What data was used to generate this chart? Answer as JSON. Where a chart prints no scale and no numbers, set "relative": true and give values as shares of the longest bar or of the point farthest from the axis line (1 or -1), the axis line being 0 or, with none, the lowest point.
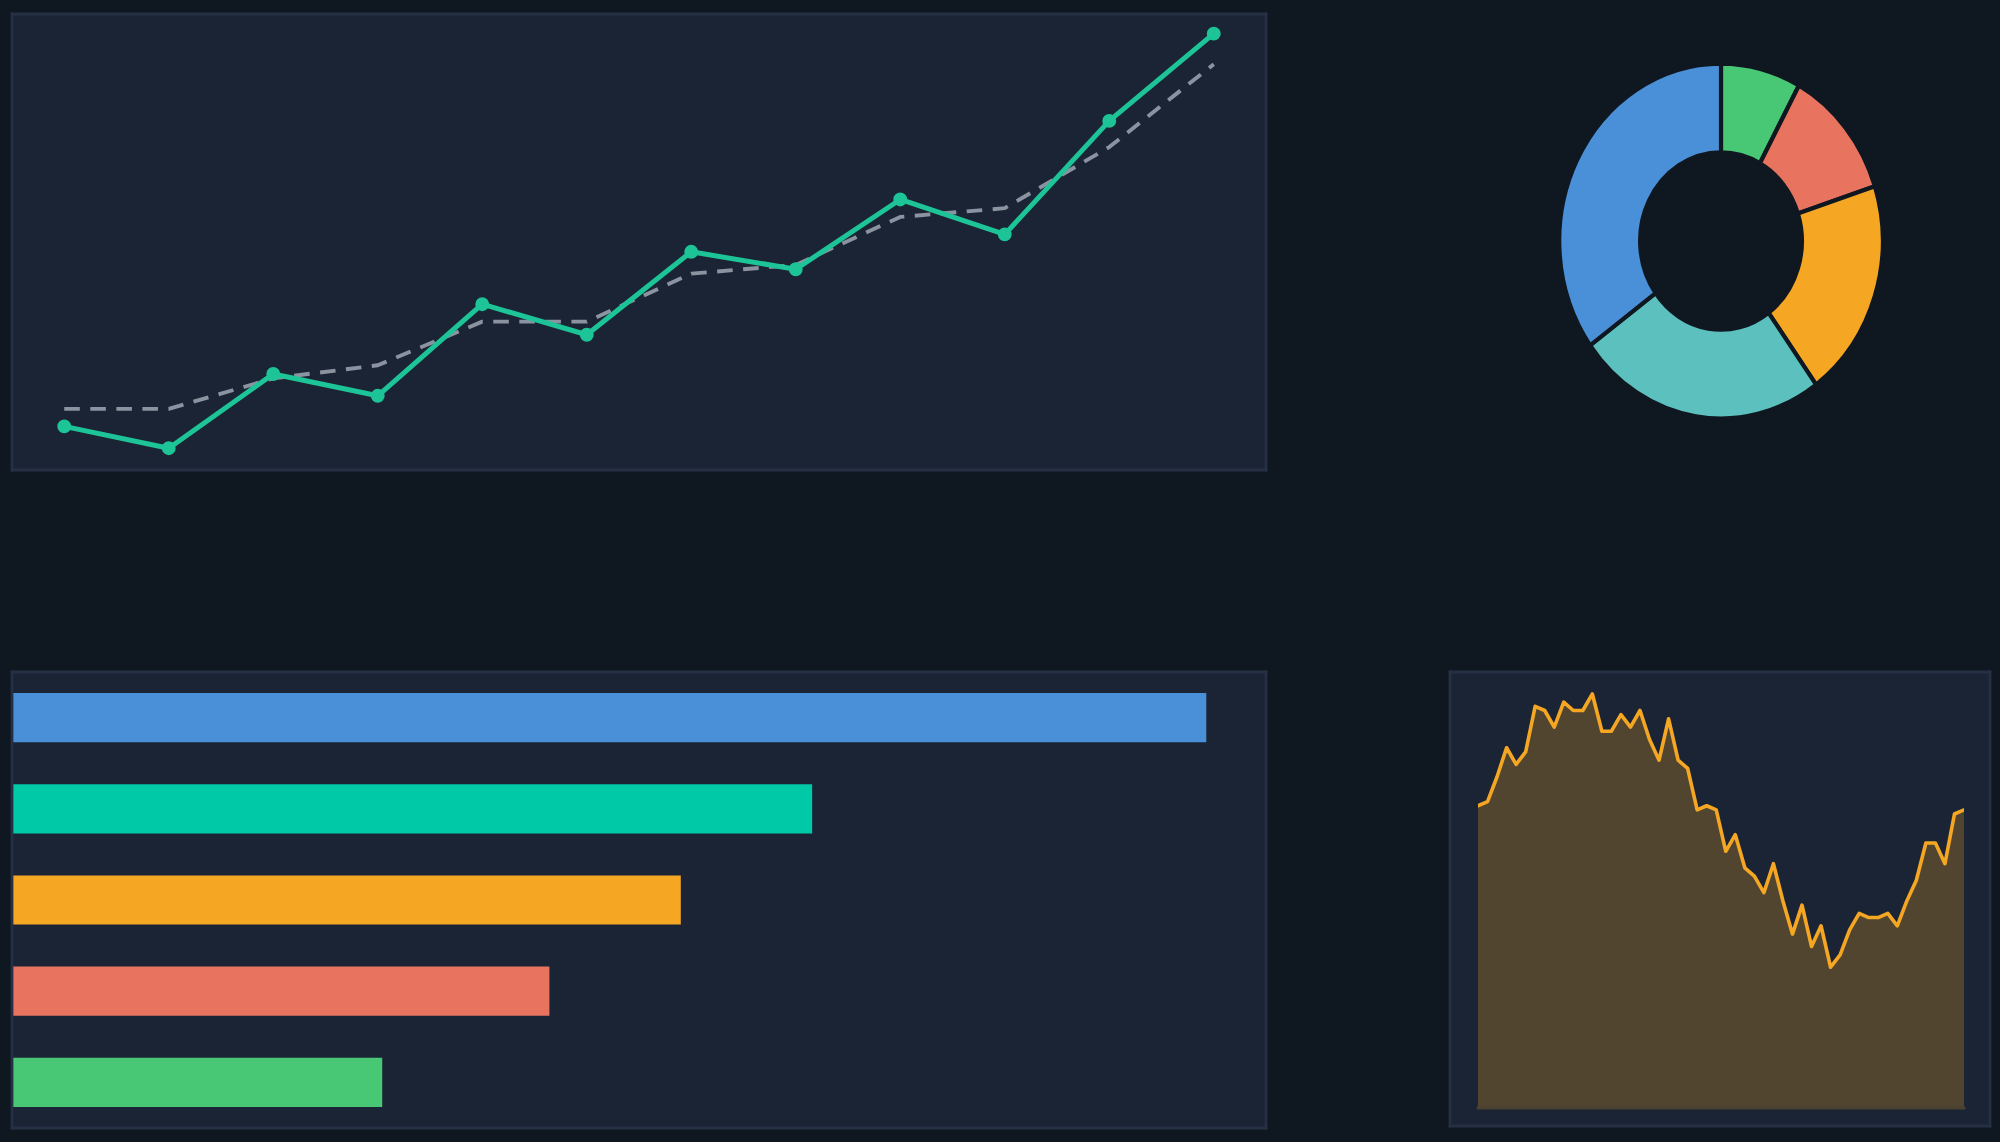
{
  "chart_data": [
    {
      "type": "line",
      "relative": true,
      "categories": [
        null,
        null,
        null,
        null,
        null,
        null,
        null,
        null,
        null,
        null,
        null,
        null
      ],
      "series": [
        {
          "color": "#1dc497",
          "marker": "circle",
          "line_style": "solid",
          "values": [
            0.1,
            0.05,
            0.22,
            0.17,
            0.38,
            0.31,
            0.5,
            0.46,
            0.62,
            0.54,
            0.8,
            1.0
          ]
        },
        {
          "color": "#8b93a1",
          "line_style": "dashed",
          "values": [
            0.14,
            0.14,
            0.21,
            0.24,
            0.34,
            0.34,
            0.45,
            0.47,
            0.58,
            0.6,
            0.74,
            0.93
          ]
        }
      ]
    },
    {
      "type": "donut",
      "categories": [
        null,
        null,
        null,
        null,
        null
      ],
      "values": [
        8,
        12,
        20,
        25,
        35
      ],
      "colors": [
        "#48c774",
        "#e8735f",
        "#f5a623",
        "#5bc0be",
        "#4a90d9"
      ]
    },
    {
      "type": "bar",
      "orientation": "horizontal",
      "relative": true,
      "categories": [
        null,
        null,
        null,
        null,
        null
      ],
      "values": [
        1.0,
        0.67,
        0.56,
        0.45,
        0.31
      ],
      "colors": [
        "#4a90d9",
        "#00c9a7",
        "#f5a623",
        "#e8735f",
        "#48c774"
      ]
    },
    {
      "type": "area",
      "relative": true,
      "categories": [
        null,
        null,
        null,
        null,
        null,
        null,
        null,
        null,
        null,
        null,
        null,
        null,
        null,
        null,
        null,
        null,
        null,
        null,
        null,
        null,
        null,
        null,
        null,
        null,
        null,
        null,
        null,
        null,
        null,
        null,
        null,
        null,
        null,
        null,
        null,
        null,
        null,
        null,
        null,
        null,
        null,
        null,
        null,
        null,
        null,
        null,
        null,
        null,
        null,
        null,
        null,
        null
      ],
      "series": [
        {
          "color": "#f5a623",
          "values": [
            0.73,
            0.74,
            0.8,
            0.87,
            0.83,
            0.86,
            0.97,
            0.96,
            0.92,
            0.98,
            0.96,
            0.96,
            1.0,
            0.91,
            0.91,
            0.95,
            0.92,
            0.96,
            0.89,
            0.84,
            0.94,
            0.84,
            0.82,
            0.72,
            0.73,
            0.72,
            0.62,
            0.66,
            0.58,
            0.56,
            0.52,
            0.59,
            0.5,
            0.42,
            0.49,
            0.39,
            0.44,
            0.34,
            0.37,
            0.43,
            0.47,
            0.46,
            0.46,
            0.47,
            0.44,
            0.5,
            0.55,
            0.64,
            0.64,
            0.59,
            0.71,
            0.72
          ]
        }
      ]
    }
  ]
}
